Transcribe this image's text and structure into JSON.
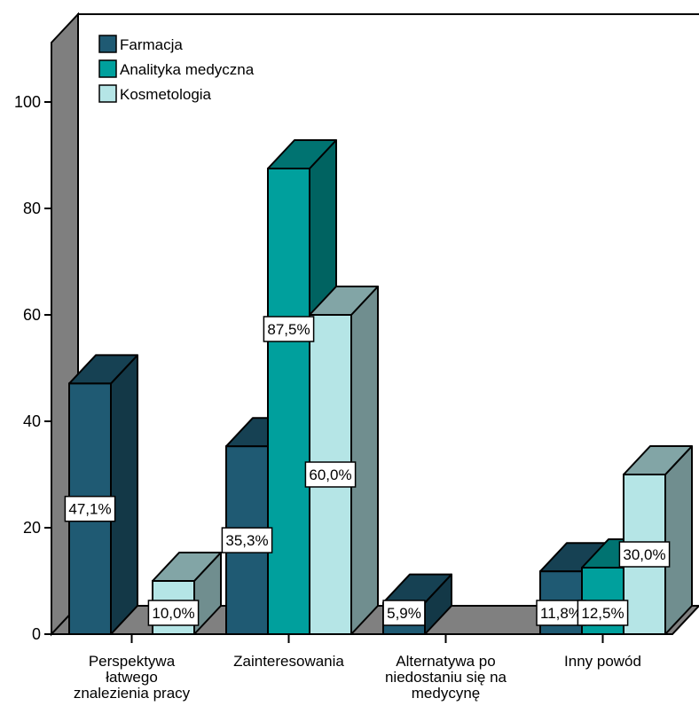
{
  "chart_data": {
    "type": "bar",
    "categories": [
      [
        "Perspektywa",
        "łatwego",
        "znalezienia pracy"
      ],
      [
        "Zainteresowania"
      ],
      [
        "Alternatywa po",
        "niedostaniu się na",
        "medycynę"
      ],
      [
        "Inny powód"
      ]
    ],
    "series": [
      {
        "name": "Farmacja",
        "values": [
          47.1,
          35.3,
          5.9,
          11.8
        ],
        "labels": [
          "47,1%",
          "35,3%",
          "5,9%",
          "11,8%"
        ],
        "color": "#1f5a73"
      },
      {
        "name": "Analityka medyczna",
        "values": [
          0,
          87.5,
          0,
          12.5
        ],
        "labels": [
          "",
          "87,5%",
          "",
          "12,5%"
        ],
        "color": "#00a09d"
      },
      {
        "name": "Kosmetologia",
        "values": [
          10.0,
          60.0,
          0,
          30.0
        ],
        "labels": [
          "10,0%",
          "60,0%",
          "",
          "30,0%"
        ],
        "color": "#b5e5e6"
      }
    ],
    "ylim": [
      0,
      100
    ],
    "yticks": [
      0,
      20,
      40,
      60,
      80,
      100
    ],
    "legend_position": "top-left",
    "style": "3d-clustered-bar",
    "title": "",
    "xlabel": "",
    "ylabel": ""
  }
}
